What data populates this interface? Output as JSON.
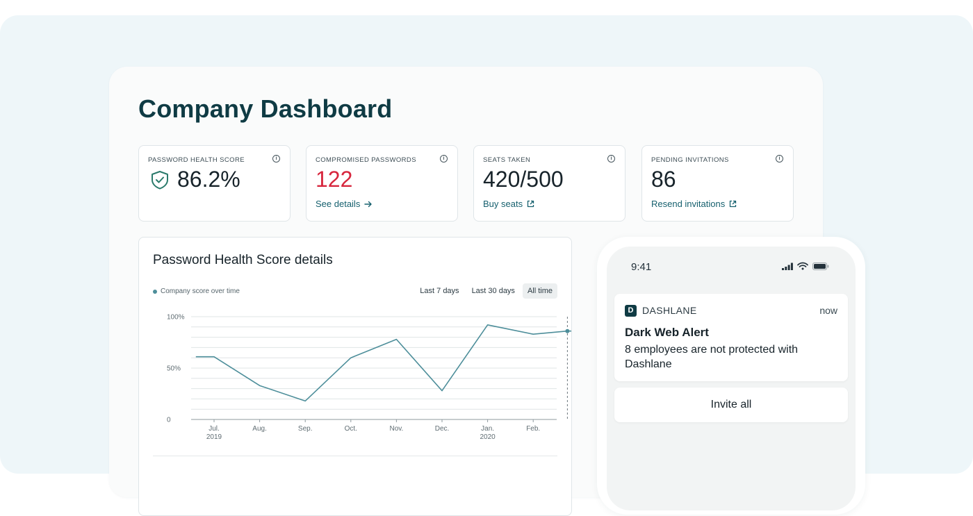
{
  "dashboard": {
    "title": "Company Dashboard"
  },
  "stats": {
    "health": {
      "label": "PASSWORD HEALTH SCORE",
      "value": "86.2%",
      "icon": "shield-check-icon"
    },
    "compromised": {
      "label": "COMPROMISED PASSWORDS",
      "value": "122",
      "link": "See details",
      "link_icon": "arrow-right-icon"
    },
    "seats": {
      "label": "SEATS TAKEN",
      "value": "420/500",
      "link": "Buy seats",
      "link_icon": "external-link-icon"
    },
    "pending": {
      "label": "PENDING INVITATIONS",
      "value": "86",
      "link": "Resend invitations",
      "link_icon": "external-link-icon"
    }
  },
  "health_details": {
    "title": "Password Health Score details",
    "legend": "Company score over time",
    "ranges": [
      "Last 7 days",
      "Last 30 days",
      "All time"
    ],
    "active_range": "All time"
  },
  "chart_data": {
    "type": "line",
    "title": "Password Health Score details",
    "x_tick_labels": [
      "Jul.",
      "Aug.",
      "Sep.",
      "Oct.",
      "Nov.",
      "Dec.",
      "Jan.",
      "Feb."
    ],
    "x_tick_sublabels": [
      "2019",
      "",
      "",
      "",
      "",
      "",
      "2020",
      ""
    ],
    "y_tick_labels": [
      "100%",
      "50%",
      "0"
    ],
    "ylim": [
      0,
      100
    ],
    "grid": true,
    "series": [
      {
        "name": "Company score over time",
        "color": "#4d8e9a",
        "points": [
          {
            "x": 0.6,
            "y": 61
          },
          {
            "x": 1.0,
            "y": 61
          },
          {
            "x": 2.0,
            "y": 33
          },
          {
            "x": 3.0,
            "y": 18
          },
          {
            "x": 4.0,
            "y": 60
          },
          {
            "x": 5.0,
            "y": 78
          },
          {
            "x": 6.0,
            "y": 28
          },
          {
            "x": 7.0,
            "y": 92
          },
          {
            "x": 8.0,
            "y": 83
          },
          {
            "x": 8.75,
            "y": 86
          },
          {
            "x": 9.5,
            "y": 86
          }
        ]
      }
    ],
    "marker_x": 8.75
  },
  "phone": {
    "time": "9:41",
    "notification": {
      "app": "DASHLANE",
      "when": "now",
      "title": "Dark Web Alert",
      "body": "8 employees are not protected with Dashlane"
    },
    "action": "Invite all"
  },
  "colors": {
    "accent": "#0f3b44",
    "link": "#16606e",
    "danger": "#d7263d",
    "line": "#4d8e9a"
  }
}
